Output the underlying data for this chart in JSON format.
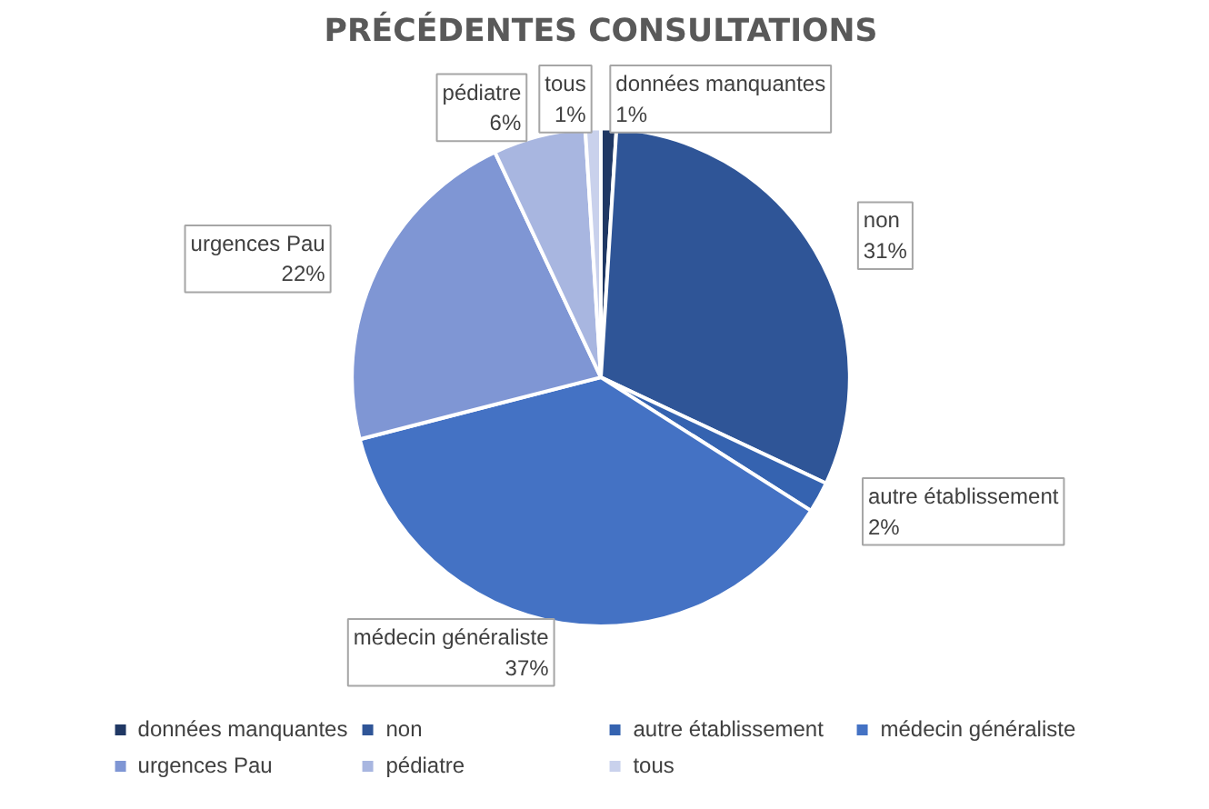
{
  "chart_data": {
    "type": "pie",
    "title": "PRÉCÉDENTES CONSULTATIONS",
    "categories": [
      "données manquantes",
      "non",
      "autre établissement",
      "médecin généraliste",
      "urgences Pau",
      "pédiatre",
      "tous"
    ],
    "values": [
      1,
      31,
      2,
      37,
      22,
      6,
      1
    ],
    "value_labels": [
      "1%",
      "31%",
      "2%",
      "37%",
      "22%",
      "6%",
      "1%"
    ],
    "colors": [
      "#203864",
      "#2f5597",
      "#3563b0",
      "#4472c4",
      "#7f96d4",
      "#a8b6e0",
      "#c9d1ec"
    ],
    "legend": "bottom"
  }
}
